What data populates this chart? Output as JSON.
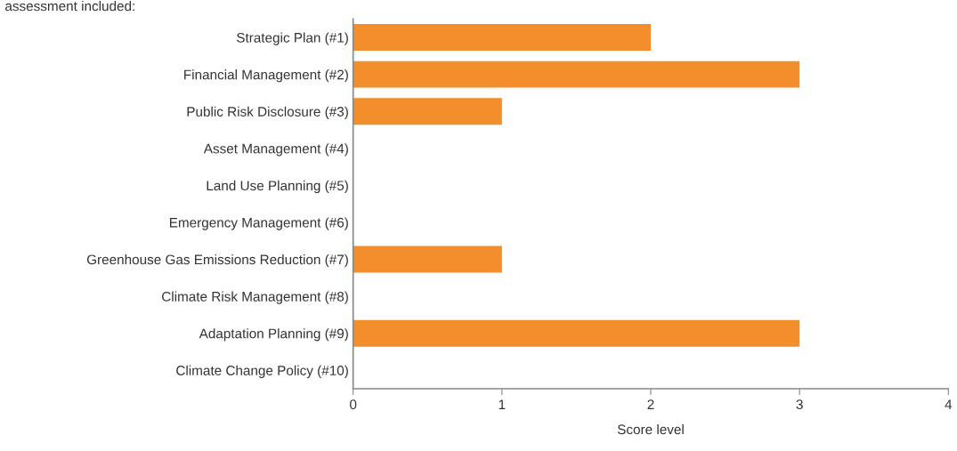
{
  "chart_data": {
    "type": "bar",
    "orientation": "horizontal",
    "xlabel": "Score level",
    "annotations": [
      "assessment included:"
    ],
    "categories": [
      "Strategic Plan (#1)",
      "Financial Management (#2)",
      "Public Risk Disclosure (#3)",
      "Asset Management (#4)",
      "Land Use Planning (#5)",
      "Emergency Management (#6)",
      "Greenhouse Gas Emissions Reduction (#7)",
      "Climate Risk Management (#8)",
      "Adaptation Planning (#9)",
      "Climate Change Policy (#10)"
    ],
    "values": [
      2,
      3,
      1,
      0,
      0,
      0,
      1,
      0,
      3,
      0
    ],
    "color": "#f28e2b",
    "xlim": [
      0,
      4
    ],
    "xticks": [
      0,
      1,
      2,
      3,
      4
    ],
    "grid": false
  }
}
